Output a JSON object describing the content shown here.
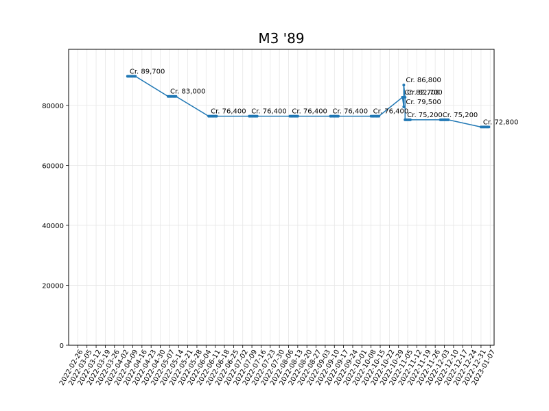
{
  "chart_data": {
    "type": "line",
    "title": "M3 '89",
    "xlabel": "",
    "ylabel": "",
    "ylim": [
      0,
      98700
    ],
    "y_ticks": [
      0,
      20000,
      40000,
      60000,
      80000
    ],
    "grid": true,
    "line_color": "#1f77b4",
    "x_ticks": [
      "2022-02-26",
      "2022-03-05",
      "2022-03-12",
      "2022-03-19",
      "2022-03-26",
      "2022-04-02",
      "2022-04-09",
      "2022-04-16",
      "2022-04-23",
      "2022-04-30",
      "2022-05-07",
      "2022-05-14",
      "2022-05-21",
      "2022-05-28",
      "2022-06-04",
      "2022-06-11",
      "2022-06-18",
      "2022-06-25",
      "2022-07-02",
      "2022-07-09",
      "2022-07-16",
      "2022-07-23",
      "2022-07-30",
      "2022-08-06",
      "2022-08-13",
      "2022-08-20",
      "2022-08-27",
      "2022-09-03",
      "2022-09-10",
      "2022-09-17",
      "2022-09-24",
      "2022-10-01",
      "2022-10-08",
      "2022-10-15",
      "2022-10-22",
      "2022-10-29",
      "2022-11-05",
      "2022-11-12",
      "2022-11-19",
      "2022-11-26",
      "2022-12-03",
      "2022-12-10",
      "2022-12-17",
      "2022-12-24",
      "2022-12-31",
      "2023-01-07"
    ],
    "series": [
      {
        "name": "",
        "points": [
          {
            "x": "2022-04-05",
            "y": 89700
          },
          {
            "x": "2022-04-06",
            "y": 89700
          },
          {
            "x": "2022-04-07",
            "y": 89700
          },
          {
            "x": "2022-04-08",
            "y": 89700
          },
          {
            "x": "2022-04-09",
            "y": 89700
          },
          {
            "x": "2022-04-10",
            "y": 89700
          },
          {
            "x": "2022-04-11",
            "y": 89700
          },
          {
            "x": "2022-05-06",
            "y": 83000
          },
          {
            "x": "2022-05-07",
            "y": 83000
          },
          {
            "x": "2022-05-08",
            "y": 83000
          },
          {
            "x": "2022-05-09",
            "y": 83000
          },
          {
            "x": "2022-05-10",
            "y": 83000
          },
          {
            "x": "2022-05-11",
            "y": 83000
          },
          {
            "x": "2022-05-12",
            "y": 83000
          },
          {
            "x": "2022-06-06",
            "y": 76400
          },
          {
            "x": "2022-06-07",
            "y": 76400
          },
          {
            "x": "2022-06-08",
            "y": 76400
          },
          {
            "x": "2022-06-09",
            "y": 76400
          },
          {
            "x": "2022-06-10",
            "y": 76400
          },
          {
            "x": "2022-06-11",
            "y": 76400
          },
          {
            "x": "2022-06-12",
            "y": 76400
          },
          {
            "x": "2022-07-07",
            "y": 76400
          },
          {
            "x": "2022-07-08",
            "y": 76400
          },
          {
            "x": "2022-07-09",
            "y": 76400
          },
          {
            "x": "2022-07-10",
            "y": 76400
          },
          {
            "x": "2022-07-11",
            "y": 76400
          },
          {
            "x": "2022-07-12",
            "y": 76400
          },
          {
            "x": "2022-07-13",
            "y": 76400
          },
          {
            "x": "2022-08-07",
            "y": 76400
          },
          {
            "x": "2022-08-08",
            "y": 76400
          },
          {
            "x": "2022-08-09",
            "y": 76400
          },
          {
            "x": "2022-08-10",
            "y": 76400
          },
          {
            "x": "2022-08-11",
            "y": 76400
          },
          {
            "x": "2022-08-12",
            "y": 76400
          },
          {
            "x": "2022-08-13",
            "y": 76400
          },
          {
            "x": "2022-09-07",
            "y": 76400
          },
          {
            "x": "2022-09-08",
            "y": 76400
          },
          {
            "x": "2022-09-09",
            "y": 76400
          },
          {
            "x": "2022-09-10",
            "y": 76400
          },
          {
            "x": "2022-09-11",
            "y": 76400
          },
          {
            "x": "2022-09-12",
            "y": 76400
          },
          {
            "x": "2022-09-13",
            "y": 76400
          },
          {
            "x": "2022-10-08",
            "y": 76400
          },
          {
            "x": "2022-10-09",
            "y": 76400
          },
          {
            "x": "2022-10-10",
            "y": 76400
          },
          {
            "x": "2022-10-11",
            "y": 76400
          },
          {
            "x": "2022-10-12",
            "y": 76400
          },
          {
            "x": "2022-10-13",
            "y": 76400
          },
          {
            "x": "2022-10-14",
            "y": 76400
          },
          {
            "x": "2022-11-01",
            "y": 82700
          },
          {
            "x": "2022-11-01",
            "y": 82700
          },
          {
            "x": "2022-11-02",
            "y": 79500
          },
          {
            "x": "2022-11-02",
            "y": 86800
          },
          {
            "x": "2022-11-03",
            "y": 82700
          },
          {
            "x": "2022-11-03",
            "y": 75200
          },
          {
            "x": "2022-11-04",
            "y": 75200
          },
          {
            "x": "2022-11-05",
            "y": 75200
          },
          {
            "x": "2022-11-06",
            "y": 75200
          },
          {
            "x": "2022-11-07",
            "y": 75200
          },
          {
            "x": "2022-11-30",
            "y": 75200
          },
          {
            "x": "2022-12-01",
            "y": 75200
          },
          {
            "x": "2022-12-02",
            "y": 75200
          },
          {
            "x": "2022-12-03",
            "y": 75200
          },
          {
            "x": "2022-12-04",
            "y": 75200
          },
          {
            "x": "2022-12-05",
            "y": 75200
          },
          {
            "x": "2022-12-06",
            "y": 75200
          },
          {
            "x": "2022-12-31",
            "y": 72800
          },
          {
            "x": "2023-01-01",
            "y": 72800
          },
          {
            "x": "2023-01-02",
            "y": 72800
          },
          {
            "x": "2023-01-03",
            "y": 72800
          },
          {
            "x": "2023-01-04",
            "y": 72800
          },
          {
            "x": "2023-01-05",
            "y": 72800
          },
          {
            "x": "2023-01-06",
            "y": 72800
          }
        ]
      }
    ],
    "annotations": [
      {
        "x": "2022-04-05",
        "y": 89700,
        "text": "Cr. 89,700"
      },
      {
        "x": "2022-05-06",
        "y": 83000,
        "text": "Cr. 83,000"
      },
      {
        "x": "2022-06-06",
        "y": 76400,
        "text": "Cr. 76,400"
      },
      {
        "x": "2022-07-07",
        "y": 76400,
        "text": "Cr. 76,400"
      },
      {
        "x": "2022-08-07",
        "y": 76400,
        "text": "Cr. 76,400"
      },
      {
        "x": "2022-09-07",
        "y": 76400,
        "text": "Cr. 76,400"
      },
      {
        "x": "2022-10-08",
        "y": 76400,
        "text": "Cr. 76,400"
      },
      {
        "x": "2022-11-02",
        "y": 86800,
        "text": "Cr. 86,800"
      },
      {
        "x": "2022-11-01",
        "y": 82700,
        "text": "Cr. 82,700"
      },
      {
        "x": "2022-11-03",
        "y": 82700,
        "text": "Cr. 82,700"
      },
      {
        "x": "2022-11-02",
        "y": 79500,
        "text": "Cr. 79,500"
      },
      {
        "x": "2022-11-03",
        "y": 75200,
        "text": "Cr. 75,200"
      },
      {
        "x": "2022-11-30",
        "y": 75200,
        "text": "Cr. 75,200"
      },
      {
        "x": "2022-12-31",
        "y": 72800,
        "text": "Cr. 72,800"
      }
    ]
  }
}
